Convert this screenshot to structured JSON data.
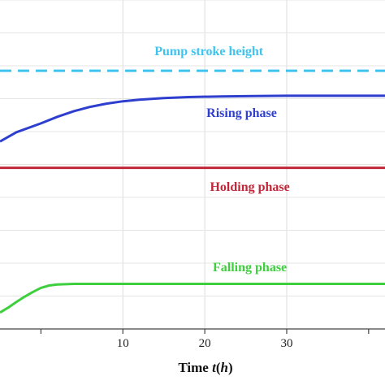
{
  "chart_data": {
    "type": "line",
    "xlabel": {
      "prefix": "Time ",
      "var": "t",
      "open": "(",
      "unit": "h",
      "close": ")"
    },
    "xlim": [
      -5,
      42
    ],
    "ylim": [
      0,
      1
    ],
    "xticks": [
      10,
      20,
      30
    ],
    "grid": true,
    "series": [
      {
        "name": "Pump stroke height",
        "color": "#3fc4f0",
        "dashed": true,
        "x": [
          -5,
          42
        ],
        "y": [
          0.785,
          0.785
        ]
      },
      {
        "name": "Rising phase",
        "color": "#2e3fcf",
        "dashed": false,
        "x": [
          -5,
          -3,
          0,
          2,
          4,
          6,
          8,
          10,
          12,
          15,
          18,
          22,
          26,
          30,
          35,
          42
        ],
        "y": [
          0.57,
          0.598,
          0.625,
          0.645,
          0.662,
          0.675,
          0.685,
          0.692,
          0.697,
          0.702,
          0.705,
          0.707,
          0.708,
          0.709,
          0.709,
          0.709
        ]
      },
      {
        "name": "Holding phase",
        "color": "#c0283a",
        "dashed": false,
        "x": [
          -5,
          42
        ],
        "y": [
          0.49,
          0.49
        ]
      },
      {
        "name": "Falling phase",
        "color": "#3ecf3e",
        "dashed": false,
        "x": [
          -5,
          -4,
          -3,
          -2,
          -1,
          0,
          1,
          2,
          3,
          4,
          6,
          8,
          12,
          20,
          42
        ],
        "y": [
          0.05,
          0.065,
          0.082,
          0.098,
          0.112,
          0.125,
          0.132,
          0.135,
          0.136,
          0.137,
          0.137,
          0.137,
          0.137,
          0.137,
          0.137
        ]
      }
    ],
    "annotations": [
      {
        "text": "Pump stroke height",
        "x": 20.5,
        "y": 0.832,
        "color": "#3fc4f0"
      },
      {
        "text": "Rising phase",
        "x": 24.5,
        "y": 0.645,
        "color": "#2e3fcf"
      },
      {
        "text": "Holding phase",
        "x": 25.5,
        "y": 0.42,
        "color": "#c0283a"
      },
      {
        "text": "Falling phase",
        "x": 25.5,
        "y": 0.175,
        "color": "#3ecf3e"
      }
    ]
  }
}
